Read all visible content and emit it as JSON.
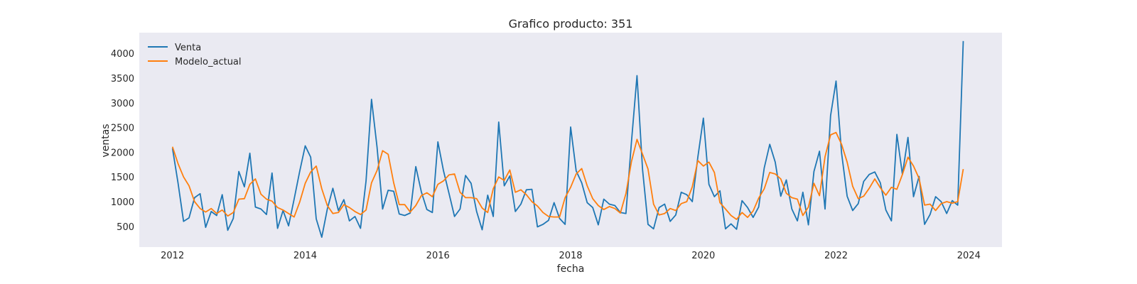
{
  "chart_data": {
    "type": "line",
    "title": "Grafico producto: 351",
    "xlabel": "fecha",
    "ylabel": "ventas",
    "x_start": "2012-01",
    "x_frequency": "monthly",
    "xticks": [
      "2012",
      "2014",
      "2016",
      "2018",
      "2020",
      "2022",
      "2024"
    ],
    "yticks": [
      500,
      1000,
      1500,
      2000,
      2500,
      3000,
      3500,
      4000
    ],
    "ylim": [
      80,
      4420
    ],
    "xlim": [
      "2011-07",
      "2024-07"
    ],
    "grid": false,
    "background": "#eaeaf2",
    "legend": {
      "placement": "top-left"
    },
    "series": [
      {
        "name": "Venta",
        "color": "#1f77b4",
        "values": [
          2080,
          1380,
          600,
          670,
          1080,
          1160,
          480,
          800,
          720,
          1140,
          420,
          660,
          1610,
          1300,
          1980,
          890,
          850,
          740,
          1580,
          460,
          820,
          510,
          1050,
          1610,
          2130,
          1900,
          650,
          280,
          850,
          1270,
          820,
          1040,
          610,
          700,
          460,
          1420,
          3070,
          2100,
          850,
          1230,
          1210,
          750,
          720,
          770,
          1710,
          1200,
          840,
          780,
          2210,
          1630,
          1170,
          700,
          850,
          1530,
          1370,
          800,
          430,
          1130,
          700,
          2610,
          1320,
          1520,
          800,
          950,
          1240,
          1250,
          490,
          540,
          620,
          980,
          660,
          540,
          2510,
          1620,
          1380,
          980,
          880,
          530,
          1050,
          950,
          920,
          780,
          760,
          2210,
          3550,
          1650,
          540,
          450,
          880,
          950,
          600,
          730,
          1190,
          1140,
          1000,
          1900,
          2690,
          1350,
          1100,
          1220,
          450,
          550,
          440,
          1020,
          880,
          680,
          890,
          1680,
          2160,
          1800,
          1110,
          1440,
          850,
          610,
          1190,
          530,
          1610,
          2020,
          850,
          2740,
          3440,
          1980,
          1110,
          820,
          960,
          1410,
          1550,
          1600,
          1380,
          830,
          610,
          2360,
          1550,
          2300,
          1100,
          1510,
          540,
          740,
          1100,
          1000,
          760,
          1020,
          930,
          4250
        ]
      },
      {
        "name": "Modelo_actual",
        "color": "#ff7f0e",
        "values": [
          2110,
          1770,
          1500,
          1320,
          1000,
          860,
          790,
          860,
          760,
          830,
          710,
          780,
          1050,
          1060,
          1350,
          1460,
          1150,
          1050,
          1010,
          880,
          830,
          760,
          690,
          990,
          1370,
          1600,
          1720,
          1260,
          920,
          760,
          780,
          940,
          880,
          800,
          740,
          830,
          1380,
          1630,
          2030,
          1960,
          1380,
          940,
          940,
          790,
          920,
          1120,
          1180,
          1100,
          1350,
          1420,
          1540,
          1560,
          1190,
          1080,
          1080,
          1060,
          870,
          780,
          1260,
          1500,
          1430,
          1640,
          1190,
          1240,
          1140,
          1000,
          910,
          780,
          700,
          690,
          690,
          1080,
          1290,
          1560,
          1670,
          1320,
          1060,
          920,
          840,
          900,
          860,
          770,
          1160,
          1810,
          2260,
          1960,
          1660,
          950,
          730,
          760,
          860,
          820,
          960,
          1000,
          1300,
          1830,
          1720,
          1800,
          1590,
          980,
          850,
          720,
          640,
          780,
          680,
          810,
          1070,
          1260,
          1590,
          1560,
          1460,
          1170,
          1080,
          1050,
          720,
          890,
          1370,
          1120,
          1910,
          2350,
          2400,
          2160,
          1800,
          1310,
          1060,
          1110,
          1270,
          1460,
          1280,
          1130,
          1290,
          1250,
          1550,
          1900,
          1720,
          1470,
          930,
          950,
          820,
          960,
          1000,
          970,
          1000,
          1660
        ]
      }
    ]
  }
}
